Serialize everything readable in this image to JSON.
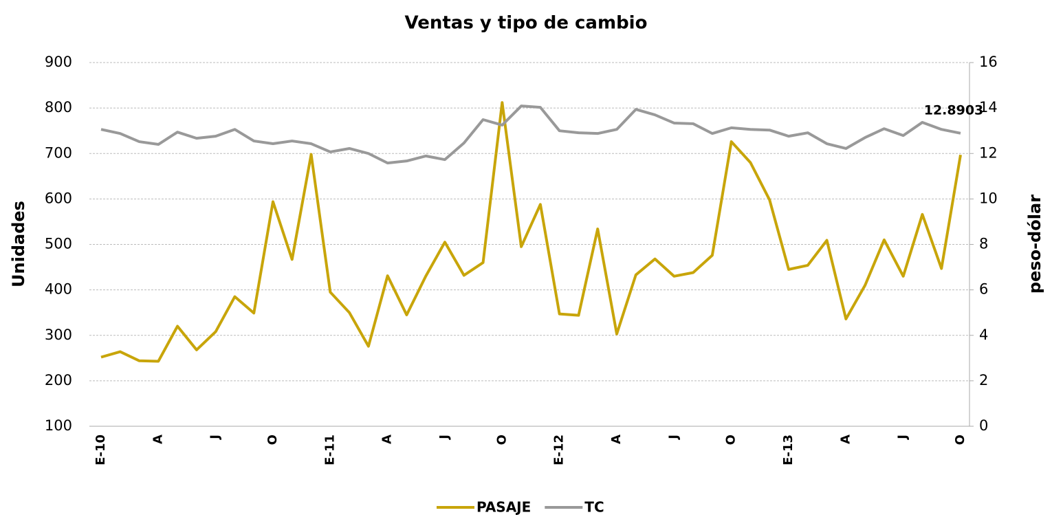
{
  "chart_data": {
    "type": "line",
    "title": "Ventas y tipo de cambio",
    "ylabel": "Unidades",
    "y2label": "peso-dólar",
    "categories": [
      "E-10",
      null,
      null,
      "A",
      null,
      null,
      "J",
      null,
      null,
      "O",
      null,
      null,
      "E-11",
      null,
      null,
      "A",
      null,
      null,
      "J",
      null,
      null,
      "O",
      null,
      null,
      "E-12",
      null,
      null,
      "A",
      null,
      null,
      "J",
      null,
      null,
      "O",
      null,
      null,
      "E-13",
      null,
      null,
      "A",
      null,
      null,
      "J",
      null,
      null,
      "O"
    ],
    "series": [
      {
        "name": "PASAJE",
        "color": "#c8a50a",
        "axis": "y",
        "values": [
          252,
          264,
          244,
          243,
          320,
          268,
          308,
          385,
          349,
          594,
          467,
          698,
          395,
          350,
          276,
          431,
          345,
          430,
          505,
          432,
          460,
          812,
          495,
          588,
          347,
          344,
          534,
          303,
          433,
          468,
          430,
          438,
          476,
          726,
          680,
          598,
          445,
          454,
          509,
          336,
          410,
          510,
          430,
          566,
          447,
          697
        ]
      },
      {
        "name": "TC",
        "color": "#999999",
        "axis": "y2",
        "values": [
          13.06,
          12.88,
          12.52,
          12.4,
          12.94,
          12.67,
          12.76,
          13.06,
          12.55,
          12.43,
          12.55,
          12.43,
          12.07,
          12.22,
          12.0,
          11.58,
          11.67,
          11.89,
          11.73,
          12.46,
          13.49,
          13.25,
          14.09,
          14.03,
          13.0,
          12.91,
          12.88,
          13.06,
          13.94,
          13.7,
          13.34,
          13.31,
          12.88,
          13.13,
          13.06,
          13.03,
          12.76,
          12.91,
          12.43,
          12.22,
          12.7,
          13.09,
          12.79,
          13.37,
          13.06,
          12.8903
        ],
        "value_labels": [
          null,
          null,
          null,
          null,
          null,
          null,
          null,
          null,
          null,
          null,
          null,
          null,
          null,
          null,
          null,
          null,
          null,
          null,
          null,
          null,
          null,
          null,
          null,
          null,
          null,
          null,
          null,
          null,
          null,
          null,
          null,
          null,
          null,
          null,
          null,
          null,
          null,
          null,
          null,
          null,
          null,
          null,
          null,
          null,
          null,
          "12.8903"
        ]
      }
    ],
    "ylim": [
      100,
      900
    ],
    "yticks": [
      100,
      200,
      300,
      400,
      500,
      600,
      700,
      800,
      900
    ],
    "y2lim": [
      0,
      16
    ],
    "y2ticks": [
      0,
      2,
      4,
      6,
      8,
      10,
      12,
      14,
      16
    ],
    "grid": true,
    "legend": "bottom"
  }
}
